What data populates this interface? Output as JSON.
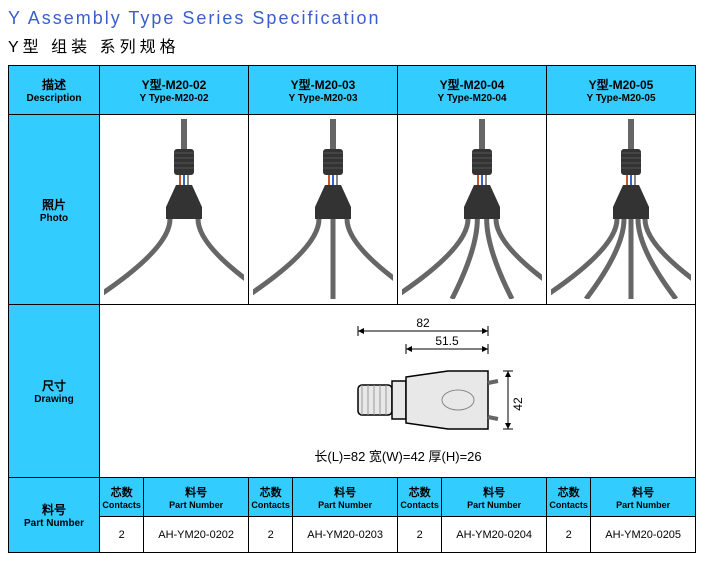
{
  "title_en": "Y Assembly Type Series Specification",
  "title_cn": "Y型 组装 系列规格",
  "desc": {
    "cn": "描述",
    "en": "Description"
  },
  "photo": {
    "cn": "照片",
    "en": "Photo"
  },
  "drawing_label": {
    "cn": "尺寸",
    "en": "Drawing"
  },
  "partnum_label": {
    "cn": "料号",
    "en": "Part Number"
  },
  "sub_contacts": {
    "cn": "芯数",
    "en": "Contacts"
  },
  "sub_partnum": {
    "cn": "料号",
    "en": "Part Number"
  },
  "models": [
    {
      "cn": "Y型-M20-02",
      "en": "Y Type-M20-02",
      "branches": 2,
      "contacts": "2",
      "pn": "AH-YM20-0202"
    },
    {
      "cn": "Y型-M20-03",
      "en": "Y Type-M20-03",
      "branches": 3,
      "contacts": "2",
      "pn": "AH-YM20-0203"
    },
    {
      "cn": "Y型-M20-04",
      "en": "Y Type-M20-04",
      "branches": 4,
      "contacts": "2",
      "pn": "AH-YM20-0204"
    },
    {
      "cn": "Y型-M20-05",
      "en": "Y Type-M20-05",
      "branches": 5,
      "contacts": "2",
      "pn": "AH-YM20-0205"
    }
  ],
  "drawing": {
    "dim_top_outer": "82",
    "dim_top_inner": "51.5",
    "dim_right": "42",
    "dim_line": "长(L)=82 宽(W)=42 厚(H)=26",
    "body_fill": "#e8e8e8",
    "body_stroke": "#000000",
    "cable_color": "#666666",
    "conn_color": "#333333",
    "wire_colors": [
      "#cc5522",
      "#3366cc",
      "#888888"
    ]
  },
  "colors": {
    "header_bg": "#33ccff",
    "title_color": "#3a5fcd"
  }
}
